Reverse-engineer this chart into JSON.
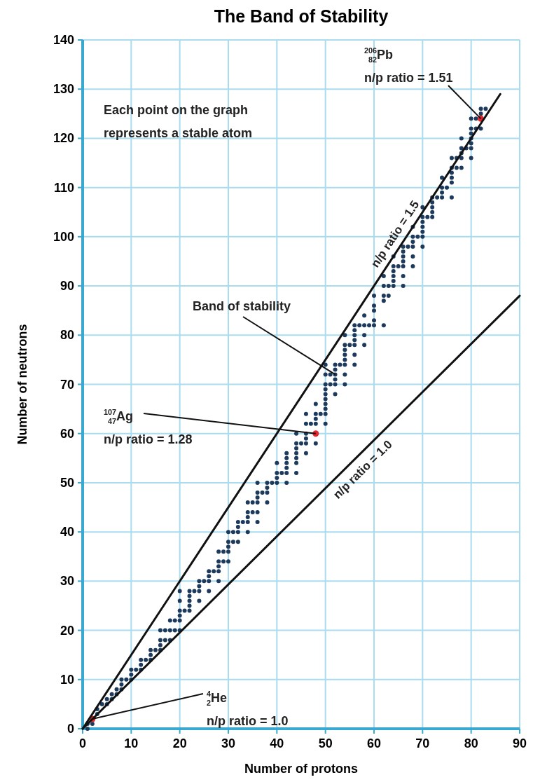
{
  "chart_data": {
    "type": "scatter",
    "title": "The Band of Stability",
    "xlabel": "Number of protons",
    "ylabel": "Number of neutrons",
    "xlim": [
      0,
      90
    ],
    "ylim": [
      0,
      140
    ],
    "xticks": [
      0,
      10,
      20,
      30,
      40,
      50,
      60,
      70,
      80,
      90
    ],
    "yticks": [
      0,
      10,
      20,
      30,
      40,
      50,
      60,
      70,
      80,
      90,
      100,
      110,
      120,
      130,
      140
    ],
    "grid": true,
    "marker": "circle",
    "series": [
      {
        "color": "#1d3a5c",
        "x": [
          1,
          1,
          2,
          3,
          3,
          4,
          5,
          5,
          6,
          6,
          7,
          7,
          8,
          8,
          8,
          9,
          10,
          10,
          10,
          11,
          12,
          12,
          12,
          13,
          14,
          14,
          14,
          15,
          16,
          16,
          16,
          16,
          17,
          17,
          18,
          18,
          18,
          19,
          19,
          20,
          20,
          20,
          20,
          20,
          20,
          21,
          22,
          22,
          22,
          22,
          22,
          23,
          24,
          24,
          24,
          24,
          25,
          26,
          26,
          26,
          26,
          27,
          28,
          28,
          28,
          28,
          28,
          29,
          29,
          30,
          30,
          30,
          30,
          30,
          31,
          31,
          32,
          32,
          32,
          32,
          33,
          34,
          34,
          34,
          34,
          34,
          35,
          35,
          36,
          36,
          36,
          36,
          36,
          36,
          37,
          38,
          38,
          38,
          38,
          39,
          40,
          40,
          40,
          40,
          41,
          42,
          42,
          42,
          42,
          42,
          42,
          44,
          44,
          44,
          44,
          44,
          44,
          44,
          45,
          46,
          46,
          46,
          46,
          46,
          46,
          47,
          48,
          48,
          48,
          48,
          48,
          49,
          50,
          50,
          50,
          50,
          50,
          50,
          50,
          50,
          50,
          50,
          51,
          51,
          52,
          52,
          52,
          52,
          52,
          52,
          53,
          54,
          54,
          54,
          54,
          54,
          54,
          54,
          54,
          55,
          56,
          56,
          56,
          56,
          56,
          56,
          56,
          57,
          58,
          58,
          58,
          58,
          59,
          60,
          60,
          60,
          60,
          60,
          62,
          62,
          62,
          62,
          62,
          63,
          63,
          64,
          64,
          64,
          64,
          64,
          64,
          65,
          66,
          66,
          66,
          66,
          66,
          66,
          66,
          67,
          68,
          68,
          68,
          68,
          68,
          68,
          69,
          70,
          70,
          70,
          70,
          70,
          70,
          70,
          71,
          72,
          72,
          72,
          72,
          72,
          73,
          74,
          74,
          74,
          74,
          75,
          76,
          76,
          76,
          76,
          76,
          76,
          77,
          77,
          78,
          78,
          78,
          78,
          78,
          79,
          80,
          80,
          80,
          80,
          80,
          80,
          80,
          81,
          81,
          82,
          82,
          82,
          83
        ],
        "values": [
          0,
          1,
          1,
          3,
          4,
          5,
          5,
          6,
          6,
          7,
          7,
          8,
          8,
          9,
          10,
          10,
          10,
          11,
          12,
          12,
          12,
          13,
          14,
          14,
          14,
          15,
          16,
          16,
          16,
          17,
          18,
          20,
          18,
          20,
          18,
          20,
          22,
          20,
          22,
          20,
          22,
          23,
          24,
          26,
          28,
          24,
          24,
          25,
          26,
          27,
          28,
          28,
          26,
          28,
          29,
          30,
          30,
          28,
          30,
          31,
          32,
          32,
          30,
          32,
          33,
          34,
          36,
          34,
          36,
          34,
          36,
          37,
          38,
          40,
          38,
          40,
          38,
          40,
          41,
          42,
          42,
          40,
          42,
          43,
          44,
          46,
          44,
          46,
          42,
          44,
          46,
          47,
          48,
          50,
          48,
          46,
          48,
          49,
          50,
          50,
          50,
          51,
          52,
          54,
          52,
          50,
          52,
          53,
          54,
          55,
          56,
          52,
          54,
          55,
          56,
          57,
          58,
          60,
          58,
          56,
          58,
          59,
          60,
          62,
          64,
          62,
          58,
          62,
          63,
          64,
          66,
          64,
          62,
          64,
          65,
          66,
          67,
          68,
          69,
          70,
          72,
          74,
          70,
          72,
          68,
          70,
          71,
          72,
          73,
          74,
          74,
          70,
          72,
          74,
          75,
          76,
          77,
          78,
          80,
          78,
          74,
          76,
          78,
          79,
          80,
          81,
          82,
          82,
          78,
          80,
          82,
          84,
          82,
          82,
          83,
          85,
          86,
          88,
          82,
          87,
          88,
          90,
          92,
          88,
          90,
          90,
          91,
          92,
          93,
          94,
          96,
          94,
          90,
          92,
          94,
          95,
          96,
          97,
          98,
          98,
          94,
          96,
          98,
          99,
          100,
          102,
          100,
          98,
          100,
          101,
          102,
          103,
          104,
          106,
          104,
          104,
          105,
          106,
          107,
          108,
          108,
          108,
          109,
          110,
          112,
          110,
          108,
          111,
          112,
          113,
          114,
          116,
          114,
          116,
          114,
          116,
          117,
          118,
          120,
          118,
          116,
          118,
          119,
          120,
          121,
          122,
          124,
          122,
          124,
          122,
          125,
          126,
          126
        ]
      },
      {
        "color": "#e8242b",
        "x": [
          2,
          48,
          82
        ],
        "values": [
          2,
          60,
          124
        ]
      },
      {
        "type": "line",
        "name": "n/p ratio = 1.5",
        "color": "#111111",
        "marker": "none",
        "x": [
          0,
          86
        ],
        "values": [
          0,
          129
        ]
      },
      {
        "type": "line",
        "name": "n/p ratio = 1.0",
        "color": "#111111",
        "marker": "none",
        "x": [
          0,
          90
        ],
        "values": [
          0,
          88
        ]
      }
    ],
    "annotations": [
      "Each point on the graph\nrepresents a stable atom",
      {
        "text": "Band of stability",
        "x": 52,
        "y": 72
      },
      {
        "text": "$^{107}$$_{47}$Ag\nn/p ratio = 1.28",
        "x": 48,
        "y": 60
      },
      {
        "text": "$^{206}$$_{82}$Pb\nn/p ratio = 1.51",
        "x": 82,
        "y": 124
      },
      {
        "text": "$^{4}$$_{2}$He\nn/p ratio = 1.0",
        "x": 2,
        "y": 2
      }
    ]
  }
}
